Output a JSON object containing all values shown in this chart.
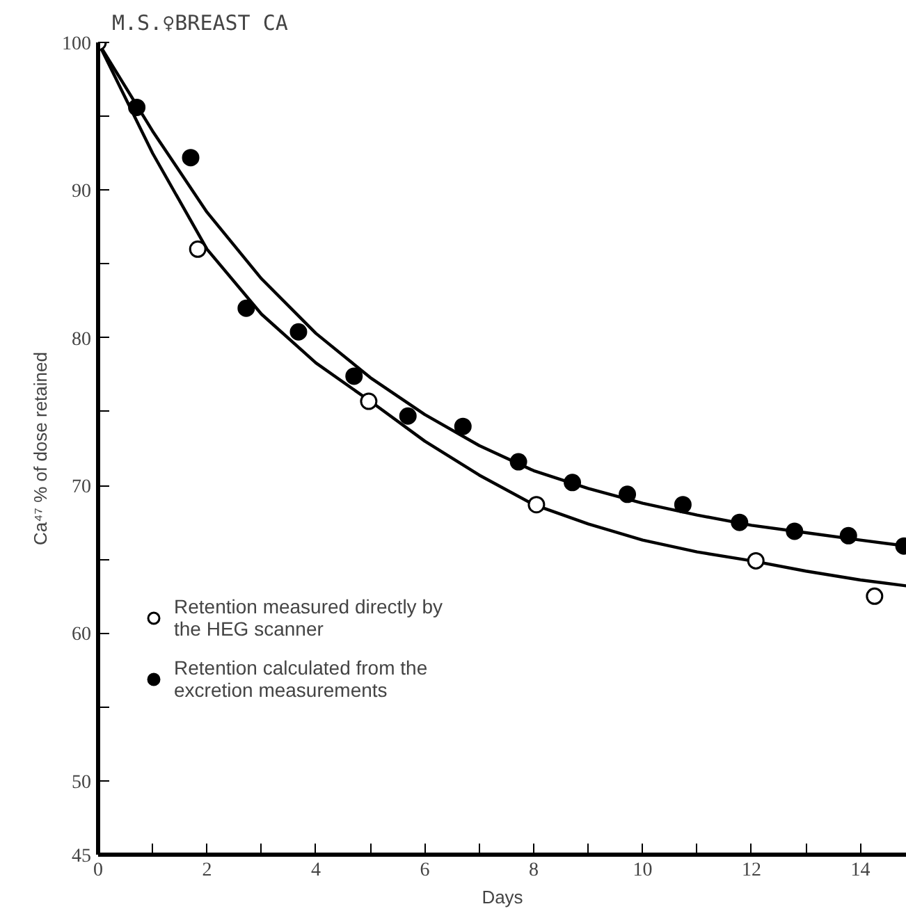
{
  "chart_data": {
    "type": "scatter",
    "title": "M.S.♀BREAST CA",
    "xlabel": "Days",
    "ylabel": "Ca⁴⁷ % of dose retained",
    "xlim": [
      0,
      14.85
    ],
    "ylim": [
      45,
      100
    ],
    "xticks": [
      0,
      {
        "value": 1,
        "label": null
      },
      2,
      {
        "value": 3,
        "label": null
      },
      4,
      {
        "value": 5,
        "label": null
      },
      6,
      {
        "value": 7,
        "label": null
      },
      8,
      {
        "value": 9,
        "label": null
      },
      10,
      {
        "value": 11,
        "label": null
      },
      12,
      {
        "value": 13,
        "label": null
      },
      14
    ],
    "yticks": [
      45,
      50,
      {
        "value": 55,
        "label": null
      },
      60,
      {
        "value": 65,
        "label": null
      },
      70,
      {
        "value": 75,
        "label": null
      },
      80,
      {
        "value": 85,
        "label": null
      },
      90,
      {
        "value": 95,
        "label": null
      },
      100
    ],
    "grid": false,
    "legend": "left",
    "series": [
      {
        "name": "Retention measured directly by\nthe HEG scanner",
        "marker": "circle",
        "color": "#ffffff",
        "x": [
          0,
          1.83,
          4.97,
          8.05,
          12.08,
          14.26
        ],
        "values": [
          100,
          86.0,
          75.7,
          68.7,
          64.9,
          62.5
        ]
      },
      {
        "name": "Retention calculated from the\nexcretion measurements",
        "marker": "circle",
        "color": "#000000",
        "x": [
          0.71,
          1.7,
          2.72,
          3.68,
          4.7,
          5.69,
          6.7,
          7.72,
          8.71,
          9.72,
          10.74,
          11.78,
          12.79,
          13.78,
          14.8
        ],
        "values": [
          95.6,
          92.2,
          82.0,
          80.4,
          77.4,
          74.7,
          74.0,
          71.6,
          70.2,
          69.4,
          68.7,
          67.5,
          66.9,
          66.6,
          65.9
        ]
      },
      {
        "type": "line",
        "color": "#000000",
        "line_style": "solid",
        "x": [
          0,
          1,
          2,
          3,
          4,
          5,
          6,
          7,
          8,
          9,
          10,
          11,
          12,
          13,
          14,
          14.85
        ],
        "values": [
          100,
          92.5,
          86.0,
          81.6,
          78.3,
          75.7,
          73.0,
          70.7,
          68.7,
          67.4,
          66.3,
          65.5,
          64.9,
          64.2,
          63.6,
          63.2
        ]
      },
      {
        "type": "line",
        "color": "#000000",
        "line_style": "solid",
        "x": [
          0,
          1,
          2,
          3,
          4,
          5,
          6,
          7,
          8,
          9,
          10,
          11,
          12,
          13,
          14,
          14.85
        ],
        "values": [
          100,
          94.0,
          88.5,
          84.0,
          80.3,
          77.3,
          74.8,
          72.7,
          71.0,
          69.8,
          68.8,
          68.0,
          67.3,
          66.8,
          66.3,
          65.9
        ]
      }
    ]
  }
}
